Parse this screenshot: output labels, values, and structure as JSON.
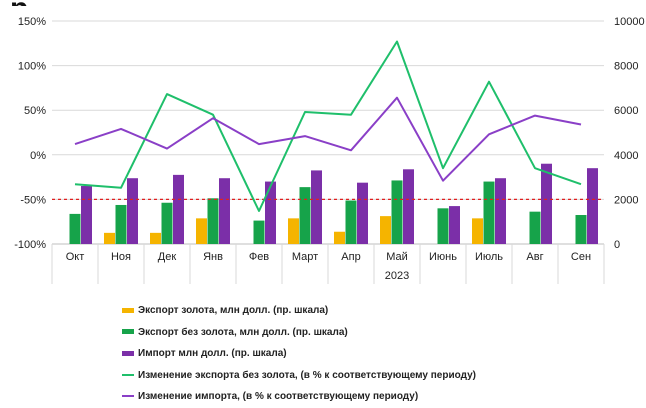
{
  "chart_data": {
    "type": "bar+line",
    "title": "",
    "categories": [
      "Окт",
      "Ноя",
      "Дек",
      "Янв",
      "Фев",
      "Март",
      "Апр",
      "Май",
      "Июнь",
      "Июль",
      "Авг",
      "Сен"
    ],
    "year_label": "2023",
    "year_label_under": "Май",
    "left_axis": {
      "ticks": [
        "150%",
        "100%",
        "50%",
        "0%",
        "-50%",
        "-100%"
      ],
      "ylim": [
        -100,
        150
      ]
    },
    "right_axis": {
      "ticks": [
        "10000",
        "8000",
        "6000",
        "4000",
        "2000",
        "0"
      ],
      "ylim": [
        0,
        10000
      ]
    },
    "reference_line": {
      "value": -50,
      "style": "dashed",
      "color": "#e02020"
    },
    "bar_series": [
      {
        "name": "Экспорт золота, млн долл. (пр. шкала)",
        "color": "#f5b400",
        "axis": "right",
        "values": [
          null,
          500,
          500,
          1150,
          null,
          1150,
          550,
          1250,
          null,
          1150,
          null,
          null
        ]
      },
      {
        "name": "Экспорт без золота, млн долл. (пр. шкала)",
        "color": "#16a34a",
        "axis": "right",
        "values": [
          1350,
          1750,
          1850,
          2050,
          1050,
          2550,
          1950,
          2850,
          1600,
          2800,
          1450,
          1300
        ]
      },
      {
        "name": "Импорт млн долл.  (пр. шкала)",
        "color": "#7b2fa8",
        "axis": "right",
        "values": [
          2600,
          2950,
          3100,
          2950,
          2800,
          3300,
          2750,
          3350,
          1700,
          2950,
          3600,
          3400
        ]
      }
    ],
    "line_series": [
      {
        "name": "Изменение экспорта без золота, (в % к соответствующему периоду)",
        "color": "#1fbf6b",
        "axis": "left",
        "values": [
          -33,
          -37,
          68,
          45,
          -63,
          48,
          45,
          127,
          -15,
          82,
          -15,
          -33
        ]
      },
      {
        "name": "Изменение импорта, (в % к соответствующему периоду)",
        "color": "#8a3fc7",
        "axis": "left",
        "values": [
          12,
          29,
          7,
          41,
          12,
          21,
          5,
          64,
          -29,
          23,
          44,
          34
        ]
      }
    ],
    "grid": true,
    "legend_position": "bottom"
  }
}
